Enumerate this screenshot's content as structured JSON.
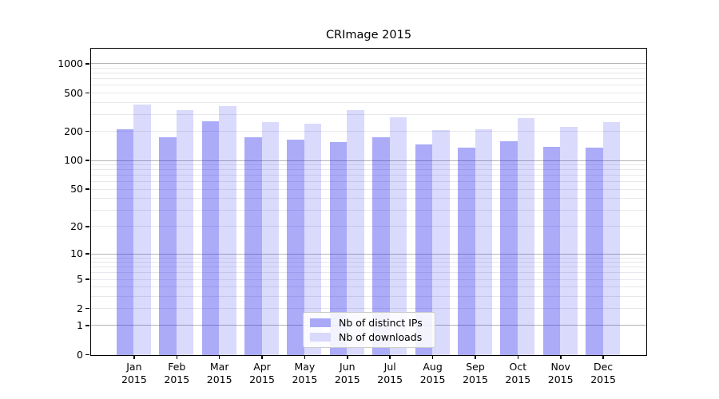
{
  "title": "CRImage 2015",
  "legend": {
    "position": "lower-center-right-of-middle",
    "items": [
      {
        "label": "Nb of distinct IPs",
        "swatch_color": "#a9a9f8"
      },
      {
        "label": "Nb of downloads",
        "swatch_color": "#d9d9fb"
      }
    ]
  },
  "colors": {
    "bar_ips": "rgba(22,22,235,0.36)",
    "bar_downloads": "rgba(22,22,235,0.16)",
    "grid_major": "#b4b4b9",
    "grid_minor": "#e8e8ec",
    "spine": "#000000",
    "background": "#ffffff"
  },
  "chart_data": {
    "type": "bar",
    "title": "CRImage 2015",
    "categories": [
      "Jan",
      "Feb",
      "Mar",
      "Apr",
      "May",
      "Jun",
      "Jul",
      "Aug",
      "Sep",
      "Oct",
      "Nov",
      "Dec"
    ],
    "category_year": "2015",
    "series": [
      {
        "name": "Nb of distinct IPs",
        "values": [
          212,
          177,
          258,
          177,
          167,
          158,
          177,
          149,
          138,
          161,
          141,
          138
        ]
      },
      {
        "name": "Nb of downloads",
        "values": [
          385,
          338,
          370,
          252,
          244,
          338,
          285,
          209,
          214,
          280,
          227,
          254
        ]
      }
    ],
    "xlabel": "",
    "ylabel": "",
    "yscale": "log(1+y)",
    "y_ticks": [
      1000,
      500,
      200,
      100,
      50,
      20,
      10,
      5,
      2,
      1,
      0
    ],
    "grid_major_values": [
      1,
      10,
      100,
      1000
    ],
    "grid_minor_values": [
      2,
      3,
      4,
      5,
      6,
      7,
      8,
      9,
      20,
      30,
      40,
      50,
      60,
      70,
      80,
      90,
      200,
      300,
      400,
      500,
      600,
      700,
      800,
      900
    ],
    "ylim": [
      0,
      1462
    ],
    "grid": "on",
    "legend_position": "inside-bottom-center"
  }
}
